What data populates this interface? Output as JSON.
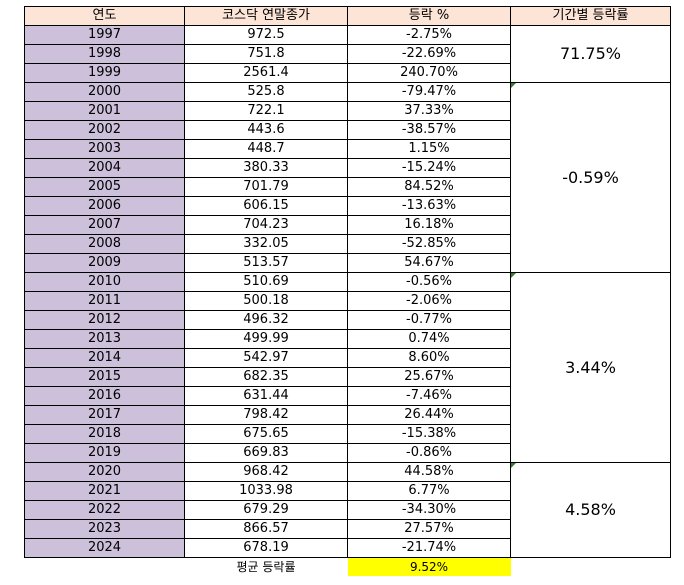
{
  "headers": {
    "year": "연도",
    "close": "코스닥 연말종가",
    "change": "등락 %",
    "period": "기간별 등락률"
  },
  "rows": [
    {
      "year": "1997",
      "close": "972.5",
      "change": "-2.75%"
    },
    {
      "year": "1998",
      "close": "751.8",
      "change": "-22.69%"
    },
    {
      "year": "1999",
      "close": "2561.4",
      "change": "240.70%"
    },
    {
      "year": "2000",
      "close": "525.8",
      "change": "-79.47%"
    },
    {
      "year": "2001",
      "close": "722.1",
      "change": "37.33%"
    },
    {
      "year": "2002",
      "close": "443.6",
      "change": "-38.57%"
    },
    {
      "year": "2003",
      "close": "448.7",
      "change": "1.15%"
    },
    {
      "year": "2004",
      "close": "380.33",
      "change": "-15.24%"
    },
    {
      "year": "2005",
      "close": "701.79",
      "change": "84.52%"
    },
    {
      "year": "2006",
      "close": "606.15",
      "change": "-13.63%"
    },
    {
      "year": "2007",
      "close": "704.23",
      "change": "16.18%"
    },
    {
      "year": "2008",
      "close": "332.05",
      "change": "-52.85%"
    },
    {
      "year": "2009",
      "close": "513.57",
      "change": "54.67%"
    },
    {
      "year": "2010",
      "close": "510.69",
      "change": "-0.56%"
    },
    {
      "year": "2011",
      "close": "500.18",
      "change": "-2.06%"
    },
    {
      "year": "2012",
      "close": "496.32",
      "change": "-0.77%"
    },
    {
      "year": "2013",
      "close": "499.99",
      "change": "0.74%"
    },
    {
      "year": "2014",
      "close": "542.97",
      "change": "8.60%"
    },
    {
      "year": "2015",
      "close": "682.35",
      "change": "25.67%"
    },
    {
      "year": "2016",
      "close": "631.44",
      "change": "-7.46%"
    },
    {
      "year": "2017",
      "close": "798.42",
      "change": "26.44%"
    },
    {
      "year": "2018",
      "close": "675.65",
      "change": "-15.38%"
    },
    {
      "year": "2019",
      "close": "669.83",
      "change": "-0.86%"
    },
    {
      "year": "2020",
      "close": "968.42",
      "change": "44.58%"
    },
    {
      "year": "2021",
      "close": "1033.98",
      "change": "6.77%"
    },
    {
      "year": "2022",
      "close": "679.29",
      "change": "-34.30%"
    },
    {
      "year": "2023",
      "close": "866.57",
      "change": "27.57%"
    },
    {
      "year": "2024",
      "close": "678.19",
      "change": "-21.74%"
    }
  ],
  "periods": [
    {
      "start": 0,
      "rows": 3,
      "value": "71.75%",
      "marker": false
    },
    {
      "start": 3,
      "rows": 10,
      "value": "-0.59%",
      "marker": true
    },
    {
      "start": 13,
      "rows": 10,
      "value": "3.44%",
      "marker": true
    },
    {
      "start": 23,
      "rows": 5,
      "value": "4.58%",
      "marker": true
    }
  ],
  "footer": {
    "label": "평균 등락률",
    "value": "9.52%"
  },
  "colors": {
    "header_bg": "#fce4d6",
    "year_bg": "#ccc0da",
    "average_highlight": "#ffff00",
    "error_marker": "#2e7d32"
  }
}
